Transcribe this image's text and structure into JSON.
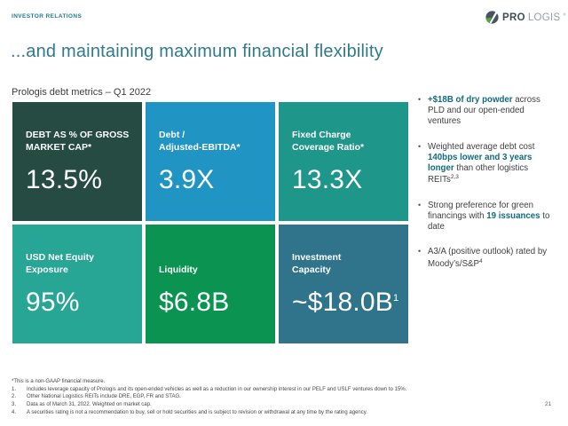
{
  "header": {
    "eyebrow": "INVESTOR RELATIONS",
    "logo": {
      "bold": "PRO",
      "light": "LOGIS",
      "mark": "®"
    }
  },
  "title": "...and maintaining maximum financial flexibility",
  "subtitle": "Prologis debt metrics – Q1 2022",
  "icons": {
    "logo": "prologis-globe-icon"
  },
  "colors": {
    "accent_teal": "#2F7A8D",
    "highlight_teal": "#116B7D",
    "tile_dark_green": "#254B42",
    "tile_blue": "#2095C3",
    "tile_teal": "#1F968A",
    "tile_light_teal": "#27A595",
    "tile_green": "#0A9351",
    "tile_steel_blue": "#2F748B"
  },
  "tiles": [
    {
      "label": "DEBT AS % OF GROSS\nMARKET CAP*",
      "value": "13.5%",
      "bg": "#254B42"
    },
    {
      "label": "Debt /\nAdjusted-EBITDA*",
      "value": "3.9X",
      "bg": "#2095C3"
    },
    {
      "label": "Fixed Charge\nCoverage Ratio*",
      "value": "13.3X",
      "bg": "#1F968A"
    },
    {
      "label": "USD Net Equity\nExposure",
      "value": "95%",
      "bg": "#27A595"
    },
    {
      "label": "Liquidity",
      "value": "$6.8B",
      "bg": "#0A9351"
    },
    {
      "label": "Investment\nCapacity",
      "value": "~$18.0B",
      "value_sup": "1",
      "bg": "#2F748B"
    }
  ],
  "bullets": [
    {
      "segments": [
        {
          "text": "+$18B of dry powder",
          "bold": true
        },
        {
          "text": " across PLD and our open-ended ventures"
        }
      ]
    },
    {
      "segments": [
        {
          "text": "Weighted average debt cost "
        },
        {
          "text": "140bps lower and 3 years longer",
          "bold": true
        },
        {
          "text": " than other logistics REITs"
        },
        {
          "text": "2,3",
          "sup": true
        }
      ]
    },
    {
      "segments": [
        {
          "text": "Strong preference for green financings with "
        },
        {
          "text": "19 issuances",
          "bold": true
        },
        {
          "text": " to date"
        }
      ]
    },
    {
      "segments": [
        {
          "text": "A3/A (positive outlook) rated by Moody’s/S&P"
        },
        {
          "text": "4",
          "sup": true
        }
      ]
    }
  ],
  "footnotes": {
    "star": "*This is a non-GAAP financial measure.",
    "items": [
      "Includes leverage capacity of Prologis and its open-ended vehicles as well as a reduction in our ownership interest in our PELF and USLF ventures down to 15%.",
      "Other National Logistics REITs include DRE, EGP, FR and STAG.",
      "Data as of March 31, 2022. Weighted on market cap.",
      "A securities rating is not a recommendation to buy, sell or hold securities and is subject to revision or withdrawal at any time by the rating agency."
    ]
  },
  "page_number": "21"
}
